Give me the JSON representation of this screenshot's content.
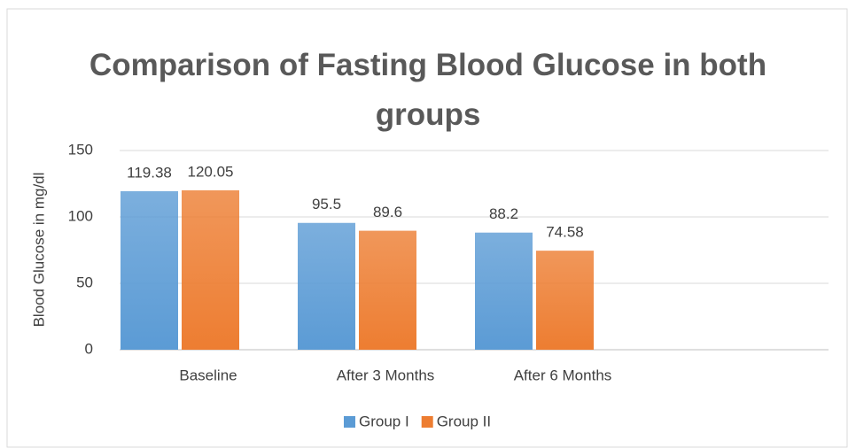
{
  "chart_data": {
    "type": "bar",
    "title": "Comparison of Fasting Blood Glucose in both groups",
    "y_label": "Blood Glucose in mg/dl",
    "categories": [
      "Baseline",
      "After 3 Months",
      "After 6 Months",
      null
    ],
    "series": [
      {
        "name": "Group I",
        "color": "#5b9bd5",
        "values": [
          119.38,
          95.5,
          88.2,
          null
        ]
      },
      {
        "name": "Group II",
        "color": "#ed7d31",
        "values": [
          120.05,
          89.6,
          74.58,
          null
        ]
      }
    ],
    "ylim": [
      0,
      150
    ],
    "yticks": [
      0,
      50,
      100,
      150
    ],
    "grid": true,
    "legend": "bottom"
  }
}
